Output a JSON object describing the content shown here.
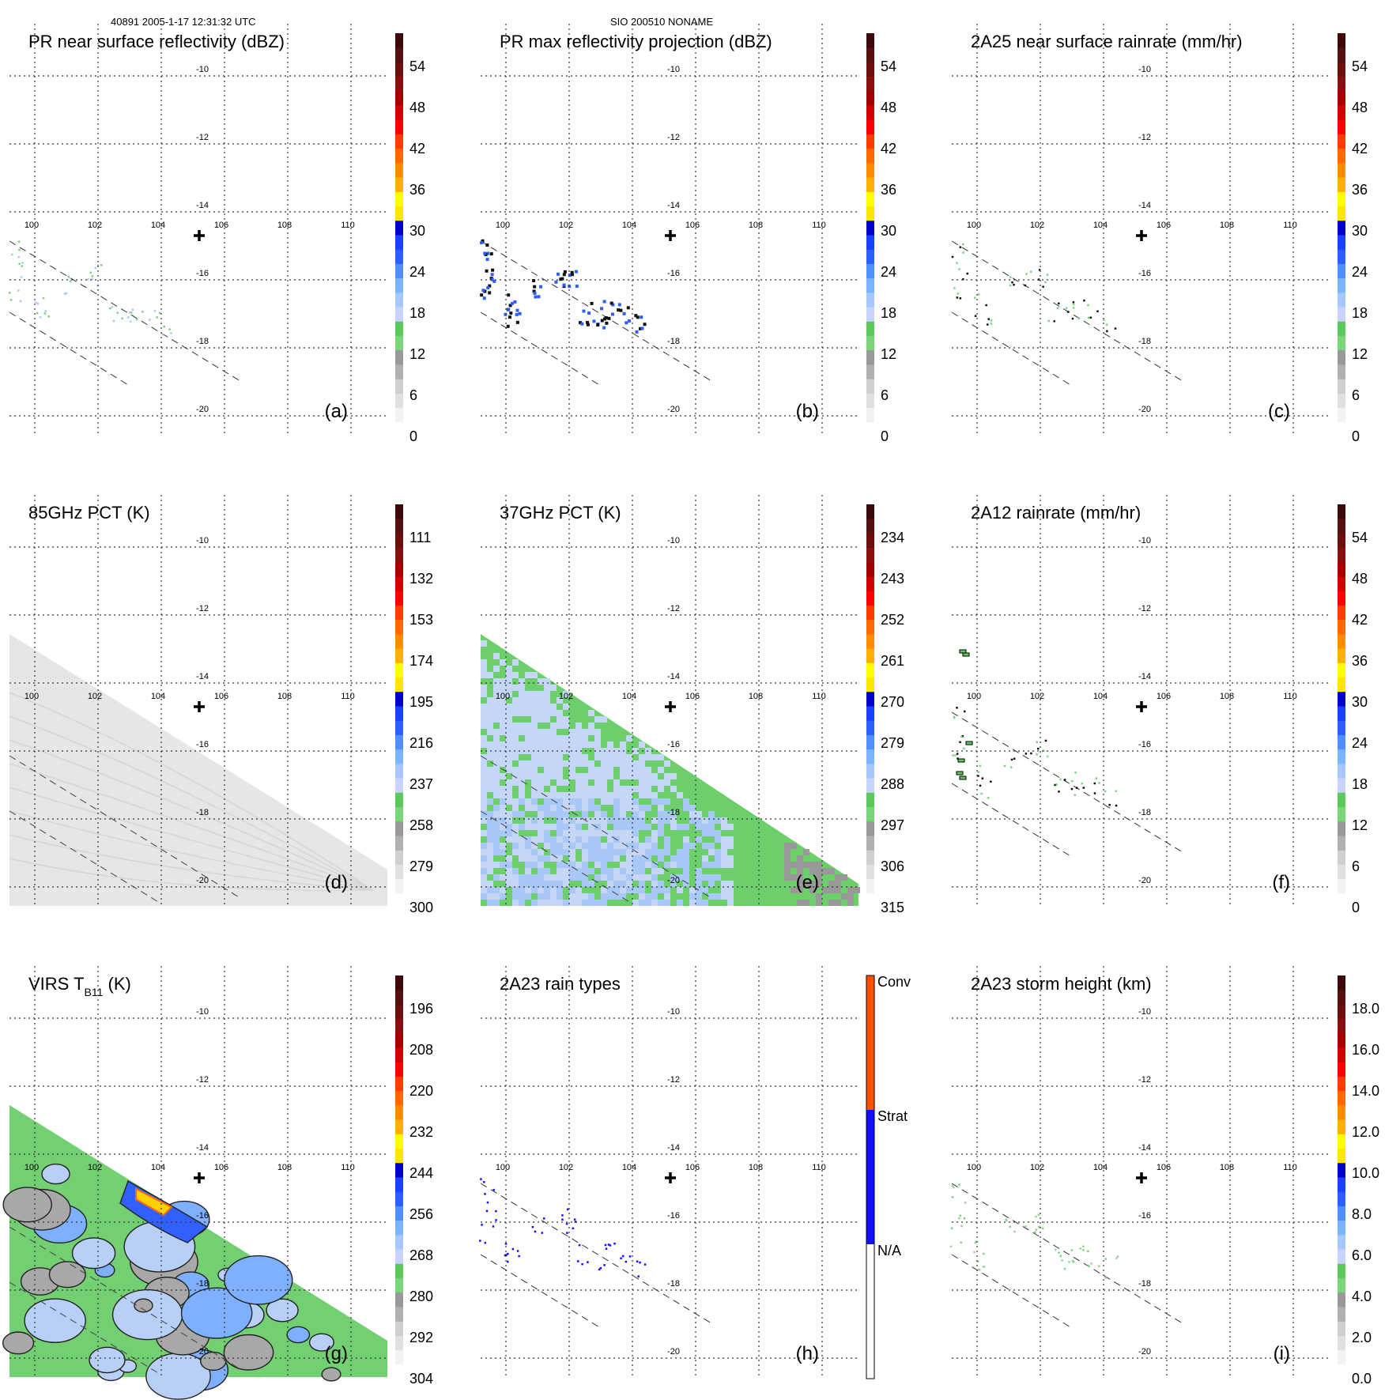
{
  "header": {
    "left": "40891 2005-1-17 12:31:32 UTC",
    "center": "SIO 200510 NONAME"
  },
  "lon_labels": [
    "100",
    "102",
    "104",
    "106",
    "108",
    "110"
  ],
  "lat_labels": [
    "-10",
    "-12",
    "-14",
    "-16",
    "-18",
    "-20"
  ],
  "colors": {
    "scale12": [
      "#ffffff",
      "#f2f2f2",
      "#e0e0e0",
      "#cfcfcf",
      "#b0b0b0",
      "#999999",
      "#7ad47a",
      "#5cc85c",
      "#c8d4ff",
      "#a6c8ff",
      "#7ab4ff",
      "#4f8fff",
      "#2d5fff",
      "#1a3fff",
      "#0000cd",
      "#ffe600",
      "#ffff00",
      "#ffb000",
      "#ff8c00",
      "#ff6a00",
      "#ff3c00",
      "#ff0000",
      "#d40000",
      "#a00000",
      "#8a1010",
      "#6b0e0e",
      "#551010",
      "#3d0a0a"
    ],
    "scale10": [
      "#ffffff",
      "#f2f2f2",
      "#e0e0e0",
      "#cfcfcf",
      "#b0b0b0",
      "#999999",
      "#7ad47a",
      "#5cc85c",
      "#c8d4ff",
      "#a6c8ff",
      "#7ab4ff",
      "#4f8fff",
      "#2d5fff",
      "#1a3fff",
      "#0000cd",
      "#ffe600",
      "#ffff00",
      "#ffb000",
      "#ff8c00",
      "#ff6a00",
      "#ff3c00",
      "#ff0000",
      "#d40000",
      "#a00000",
      "#8a1010",
      "#6b0e0e",
      "#551010",
      "#3d0a0a"
    ],
    "raintype": [
      "#ffffff",
      "#1010ff",
      "#ff5000"
    ],
    "pct85": "#e6e6e6",
    "pct37_green": "#6ccf6c",
    "pct37_blue": "#c6d6f6",
    "pct37_light": "#a8c8f8",
    "pct37_gray": "#999999",
    "virs_gray": "#a8a8a8",
    "virs_green": "#72d072",
    "virs_blue": "#b8d0f8",
    "virs_deep": "#3060ff",
    "virs_yellow": "#ffd000",
    "virs_orange": "#ff6a00"
  },
  "panels": [
    {
      "id": "a",
      "title": "PR near surface reflectivity (dBZ)",
      "tag": "(a)",
      "colorbar": {
        "type": "scale12",
        "labels": [
          "0",
          "6",
          "12",
          "18",
          "24",
          "30",
          "36",
          "42",
          "48",
          "54"
        ]
      }
    },
    {
      "id": "b",
      "title": "PR max reflectivity projection (dBZ)",
      "tag": "(b)",
      "colorbar": {
        "type": "scale12",
        "labels": [
          "0",
          "6",
          "12",
          "18",
          "24",
          "30",
          "36",
          "42",
          "48",
          "54"
        ]
      }
    },
    {
      "id": "c",
      "title": "2A25 near surface rainrate (mm/hr)",
      "tag": "(c)",
      "colorbar": {
        "type": "scale10",
        "labels": [
          "0",
          "6",
          "12",
          "18",
          "24",
          "30",
          "36",
          "42",
          "48",
          "54"
        ]
      }
    },
    {
      "id": "d",
      "title": "85GHz PCT (K)",
      "tag": "(d)",
      "colorbar": {
        "type": "scale12",
        "labels": [
          "300",
          "279",
          "258",
          "237",
          "216",
          "195",
          "174",
          "153",
          "132",
          "111"
        ]
      }
    },
    {
      "id": "e",
      "title": "37GHz PCT (K)",
      "tag": "(e)",
      "colorbar": {
        "type": "scale12",
        "labels": [
          "315",
          "306",
          "297",
          "288",
          "279",
          "270",
          "261",
          "252",
          "243",
          "234"
        ]
      }
    },
    {
      "id": "f",
      "title": "2A12 rainrate (mm/hr)",
      "tag": "(f)",
      "colorbar": {
        "type": "scale10",
        "labels": [
          "0",
          "6",
          "12",
          "18",
          "24",
          "30",
          "36",
          "42",
          "48",
          "54"
        ]
      }
    },
    {
      "id": "g",
      "title": "VIRS T",
      "title_sub": "B11",
      "title_unit": " (K)",
      "tag": "(g)",
      "colorbar": {
        "type": "scale12",
        "labels": [
          "304",
          "292",
          "280",
          "268",
          "256",
          "244",
          "232",
          "220",
          "208",
          "196"
        ]
      }
    },
    {
      "id": "h",
      "title": "2A23 rain types",
      "tag": "(h)",
      "colorbar": {
        "type": "raintype",
        "labels": [
          "N/A",
          "Strat",
          "Conv"
        ]
      }
    },
    {
      "id": "i",
      "title": "2A23 storm height (km)",
      "tag": "(i)",
      "colorbar": {
        "type": "scale12",
        "labels": [
          "0.0",
          "2.0",
          "4.0",
          "6.0",
          "8.0",
          "10.0",
          "12.0",
          "14.0",
          "16.0",
          "18.0"
        ]
      }
    }
  ]
}
